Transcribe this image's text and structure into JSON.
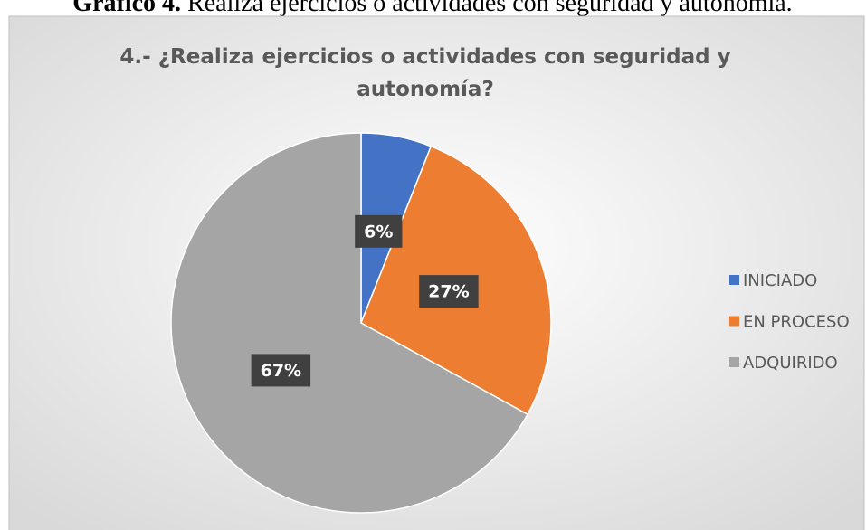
{
  "caption": {
    "label": "Gráfico 4.",
    "text": "Realiza ejercicios o actividades con seguridad y autonomía."
  },
  "chart_data": {
    "type": "pie",
    "title": [
      "4.- ¿Realiza ejercicios o actividades con seguridad y",
      "autonomía?"
    ],
    "categories": [
      "INICIADO",
      "EN PROCESO",
      "ADQUIRIDO"
    ],
    "values": [
      6,
      27,
      67
    ],
    "value_labels": [
      "6%",
      "27%",
      "67%"
    ],
    "colors": [
      "#4472c4",
      "#ed7d31",
      "#a5a5a5"
    ],
    "legend": "right"
  }
}
